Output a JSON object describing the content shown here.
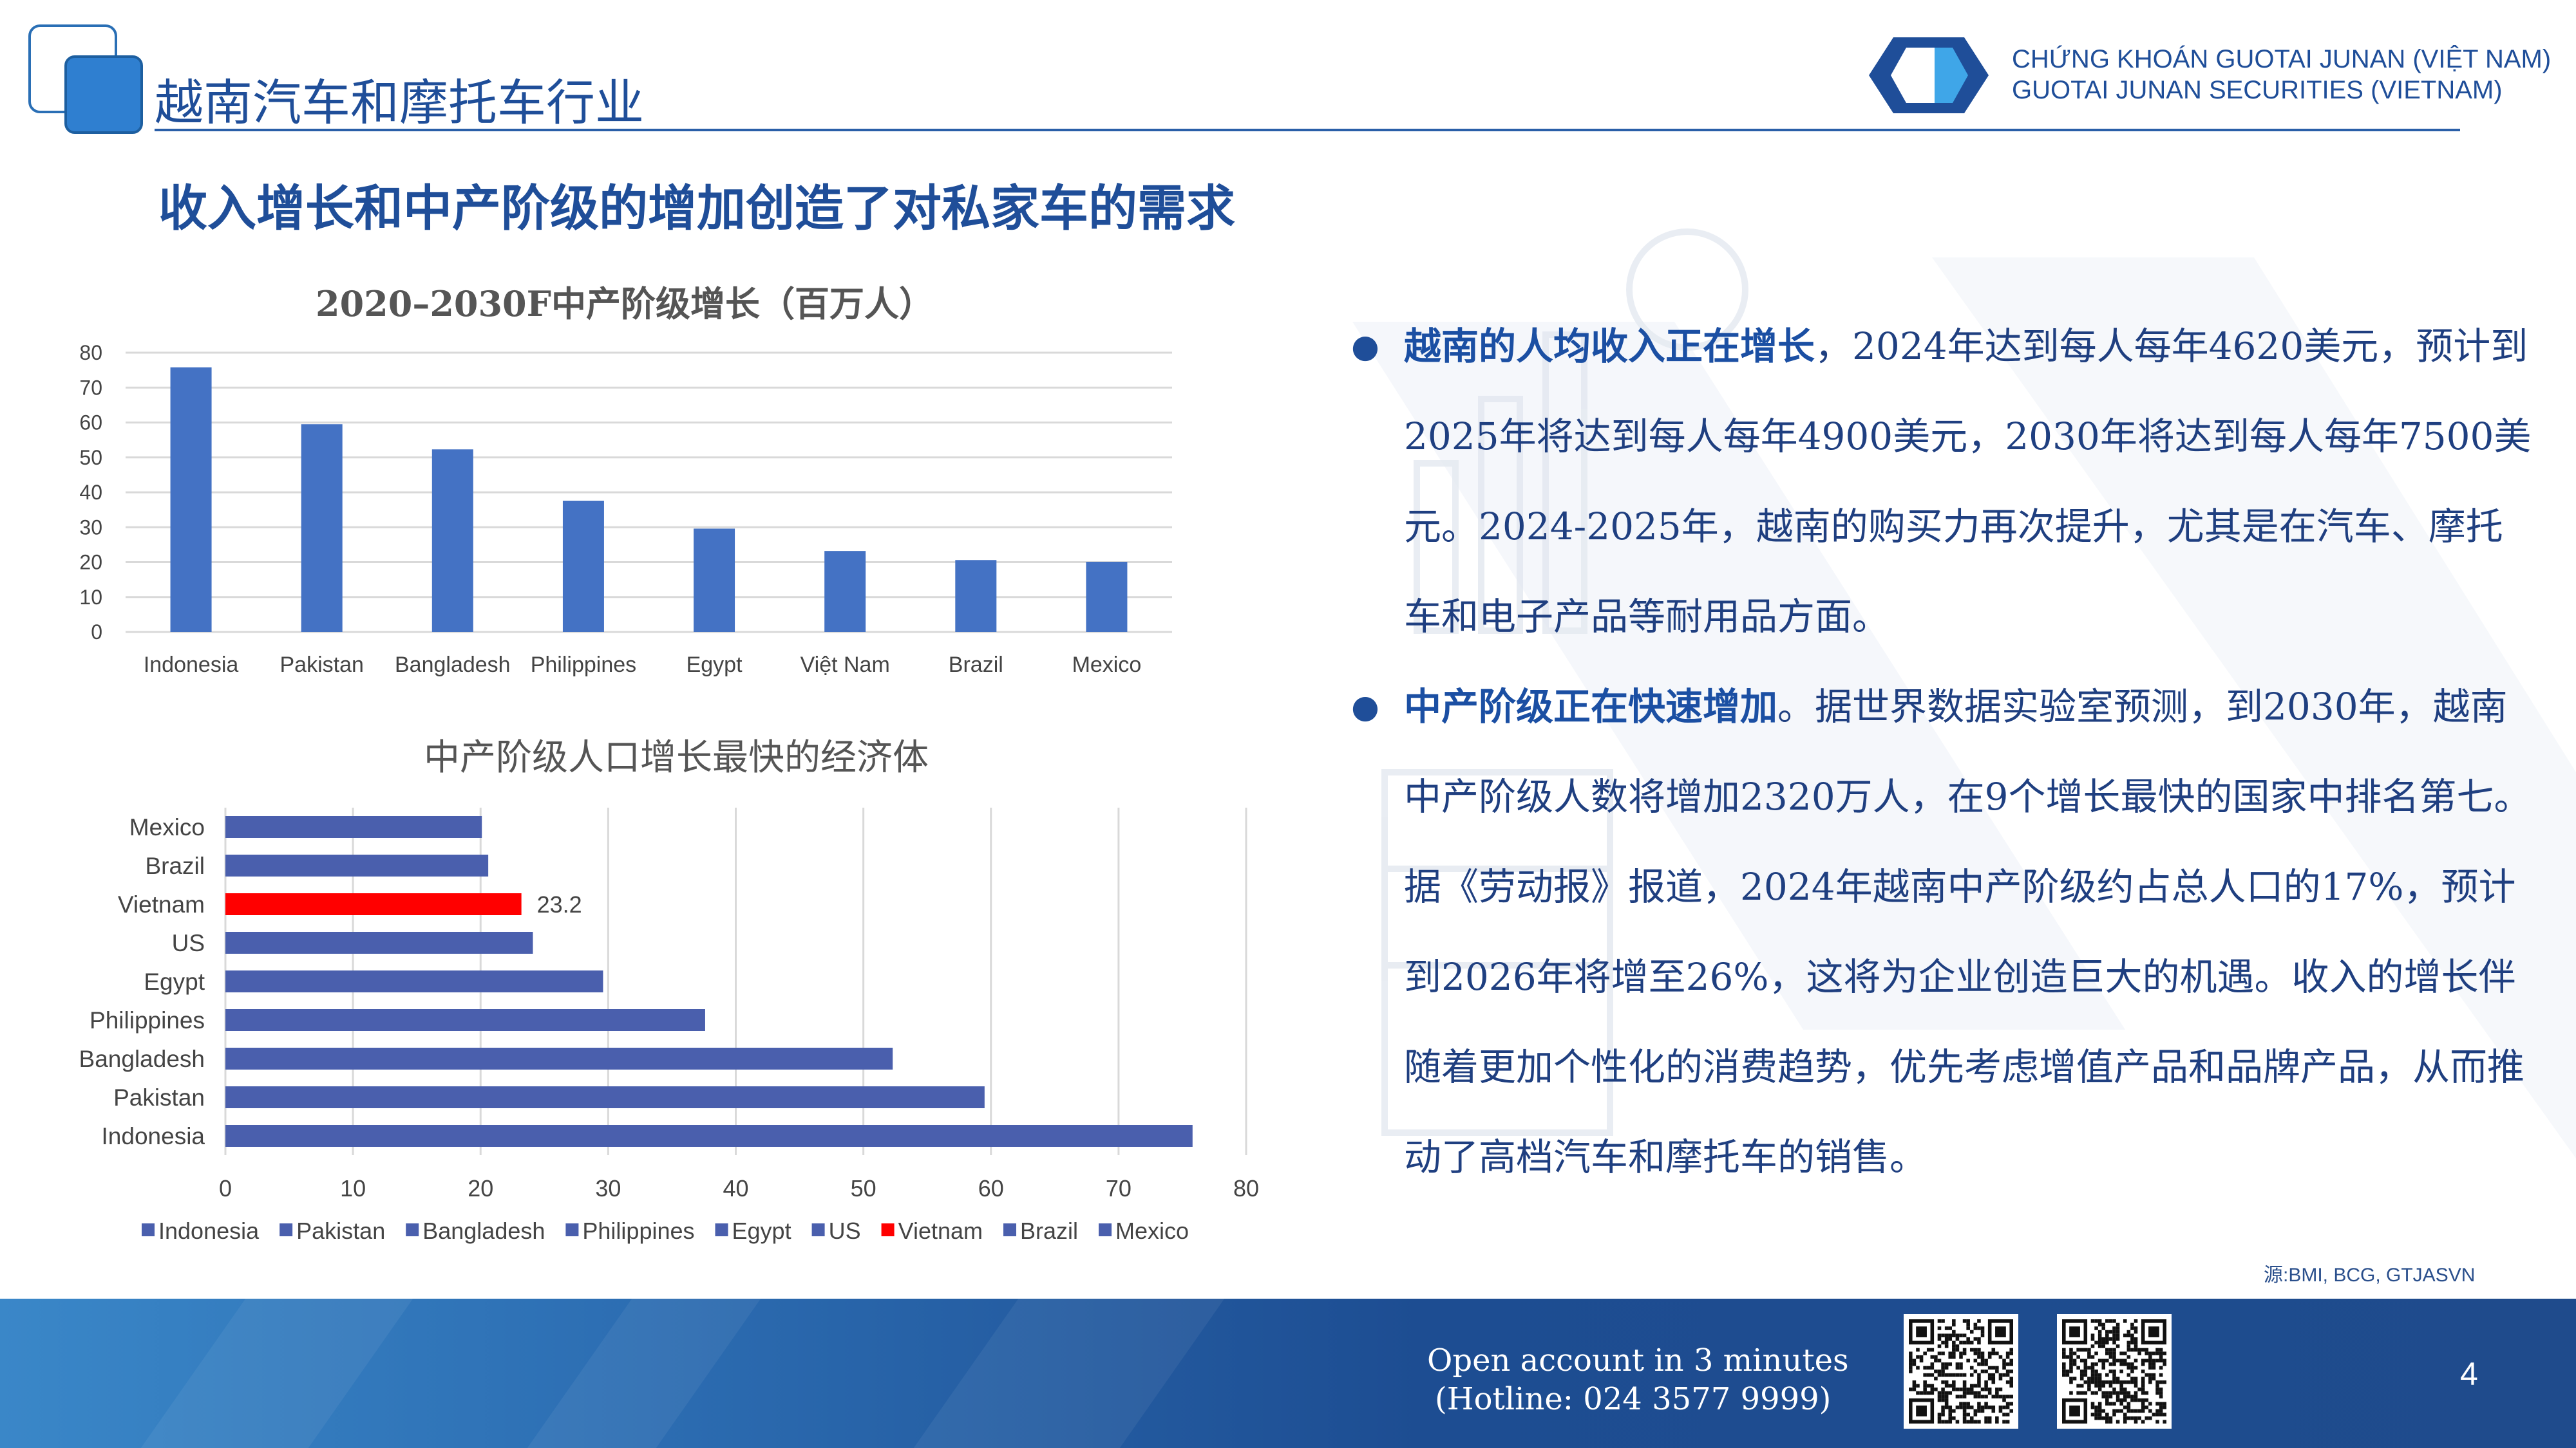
{
  "header": {
    "title": "越南汽车和摩托车行业",
    "brand_line1": "CHỨNG KHOÁN GUOTAI JUNAN (VIỆT NAM)",
    "brand_line2": "GUOTAI JUNAN SECURITIES (VIETNAM)"
  },
  "slide_title": "收入增长和中产阶级的增加创造了对私家车的需求",
  "chart_data": [
    {
      "type": "bar",
      "title": "2020–2030F中产阶级增长（百万人）",
      "categories": [
        "Indonesia",
        "Pakistan",
        "Bangladesh",
        "Philippines",
        "Egypt",
        "Việt Nam",
        "Brazil",
        "Mexico"
      ],
      "values": [
        75.8,
        59.5,
        52.3,
        37.6,
        29.6,
        23.2,
        20.6,
        20.1
      ],
      "ylim": [
        0,
        80
      ],
      "yticks": [
        "0",
        "10",
        "20",
        "30",
        "40",
        "50",
        "60",
        "70",
        "80"
      ],
      "grid": true,
      "color": "#4472c4"
    },
    {
      "type": "bar",
      "orientation": "horizontal",
      "title": "中产阶级人口增长最快的经济体",
      "categories": [
        "Mexico",
        "Brazil",
        "Vietnam",
        "US",
        "Egypt",
        "Philippines",
        "Bangladesh",
        "Pakistan",
        "Indonesia"
      ],
      "values": [
        20.1,
        20.6,
        23.2,
        24.1,
        29.6,
        37.6,
        52.3,
        59.5,
        75.8
      ],
      "highlight": {
        "category": "Vietnam",
        "label": "23.2",
        "color": "#ff0000"
      },
      "xlim": [
        0,
        80
      ],
      "xticks": [
        "0",
        "10",
        "20",
        "30",
        "40",
        "50",
        "60",
        "70",
        "80"
      ],
      "grid": true,
      "color": "#4a5fad",
      "legend_position": "bottom",
      "legend": [
        {
          "name": "Indonesia",
          "color": "#4a5fad"
        },
        {
          "name": "Pakistan",
          "color": "#4a5fad"
        },
        {
          "name": "Bangladesh",
          "color": "#4a5fad"
        },
        {
          "name": "Philippines",
          "color": "#4a5fad"
        },
        {
          "name": "Egypt",
          "color": "#4a5fad"
        },
        {
          "name": "US",
          "color": "#4a5fad"
        },
        {
          "name": "Vietnam",
          "color": "#ff0000"
        },
        {
          "name": "Brazil",
          "color": "#4a5fad"
        },
        {
          "name": "Mexico",
          "color": "#4a5fad"
        }
      ]
    }
  ],
  "bullets": [
    {
      "bold": "越南的人均收入正在增长",
      "text": "，2024年达到每人每年4620美元，预计到2025年将达到每人每年4900美元，2030年将达到每人每年7500美元。2024-2025年，越南的购买力再次提升，尤其是在汽车、摩托车和电子产品等耐用品方面。"
    },
    {
      "bold": "中产阶级正在快速增加",
      "text": "。据世界数据实验室预测，到2030年，越南中产阶级人数将增加2320万人，在9个增长最快的国家中排名第七。据《劳动报》报道，2024年越南中产阶级约占总人口的17%，预计到2026年将增至26%，这将为企业创造巨大的机遇。收入的增长伴随着更加个性化的消费趋势，优先考虑增值产品和品牌产品，从而推动了高档汽车和摩托车的销售。"
    }
  ],
  "source": "源:BMI, BCG, GTJASVN",
  "footer": {
    "line1": "Open account in 3 minutes",
    "line2": "(Hotline: 024 3577 9999)",
    "page_number": "4"
  },
  "colors": {
    "brand_blue": "#1f4e99",
    "bar_blue": "#4472c4",
    "highlight_red": "#ff0000"
  }
}
